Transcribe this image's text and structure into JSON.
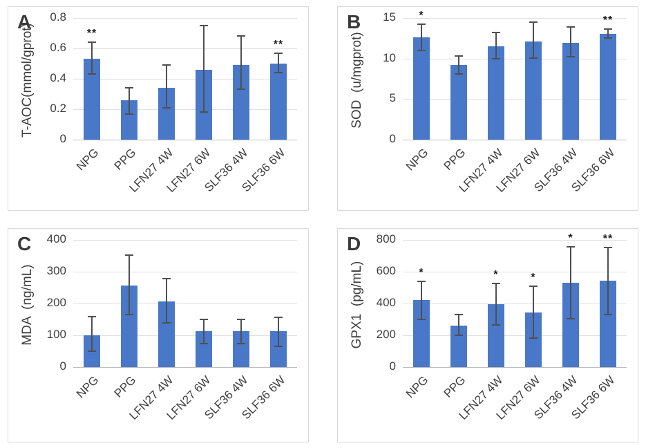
{
  "figure": {
    "background": "#ffffff",
    "panel_border_color": "#d9d9d9"
  },
  "colors": {
    "bar_fill": "#4a78c8",
    "error_bar": "#4f4f4f",
    "gridline": "#e0e0e0",
    "baseline": "#bdbdbd",
    "text": "#3d3d3d",
    "significance": "#1b1b1b"
  },
  "chart_data": [
    {
      "type": "bar",
      "panel_label": "A",
      "title": "",
      "ylabel": "T-AOC(mmol/gprot)",
      "xlabel": "",
      "ylim": [
        0,
        0.8
      ],
      "ytick_values": [
        0,
        0.2,
        0.4,
        0.6,
        0.8
      ],
      "yticks": [
        "0",
        "0.2",
        "0.4",
        "0.6",
        "0.8"
      ],
      "grid": true,
      "legend": "none",
      "categories": [
        "NPG",
        "PPG",
        "LFN27 4W",
        "LFN27 6W",
        "SLF36 4W",
        "SLF36 6W"
      ],
      "values": [
        0.53,
        0.26,
        0.34,
        0.46,
        0.49,
        0.5
      ],
      "error_low": [
        0.43,
        0.17,
        0.21,
        0.18,
        0.33,
        0.44
      ],
      "error_high": [
        0.64,
        0.34,
        0.49,
        0.75,
        0.68,
        0.57
      ],
      "significance": [
        "**",
        "",
        "",
        "",
        "",
        "**"
      ]
    },
    {
      "type": "bar",
      "panel_label": "B",
      "title": "",
      "ylabel": "SOD  (u/mgprot)",
      "xlabel": "",
      "ylim": [
        0,
        15
      ],
      "ytick_values": [
        0,
        5,
        10,
        15
      ],
      "yticks": [
        "0",
        "5",
        "10",
        "15"
      ],
      "grid": true,
      "legend": "none",
      "categories": [
        "NPG",
        "PPG",
        "LFN27 4W",
        "LFN27 6W",
        "SLF36 4W",
        "SLF36 6W"
      ],
      "values": [
        12.6,
        9.2,
        11.5,
        12.1,
        11.9,
        13.0
      ],
      "error_low": [
        11.0,
        8.1,
        10.0,
        10.1,
        10.2,
        12.5
      ],
      "error_high": [
        14.2,
        10.3,
        13.2,
        14.5,
        13.9,
        13.6
      ],
      "significance": [
        "*",
        "",
        "",
        "",
        "",
        "**"
      ]
    },
    {
      "type": "bar",
      "panel_label": "C",
      "title": "",
      "ylabel": "MDA  (ng/mL)",
      "xlabel": "",
      "ylim": [
        0,
        400
      ],
      "ytick_values": [
        0,
        100,
        200,
        300,
        400
      ],
      "yticks": [
        "0",
        "100",
        "200",
        "300",
        "400"
      ],
      "grid": true,
      "legend": "none",
      "categories": [
        "NPG",
        "PPG",
        "LFN27 4W",
        "LFN27 6W",
        "SLF36 4W",
        "SLF36 6W"
      ],
      "values": [
        101,
        257,
        206,
        113,
        114,
        112
      ],
      "error_low": [
        49,
        166,
        140,
        75,
        75,
        66
      ],
      "error_high": [
        158,
        353,
        278,
        151,
        151,
        156
      ],
      "significance": [
        "",
        "",
        "",
        "",
        "",
        ""
      ]
    },
    {
      "type": "bar",
      "panel_label": "D",
      "title": "",
      "ylabel": "GPX1  (pg/mL)",
      "xlabel": "",
      "ylim": [
        0,
        800
      ],
      "ytick_values": [
        0,
        200,
        400,
        600,
        800
      ],
      "yticks": [
        "0",
        "200",
        "400",
        "600",
        "800"
      ],
      "grid": true,
      "legend": "none",
      "categories": [
        "NPG",
        "PPG",
        "LFN27 4W",
        "LFN27 6W",
        "SLF36 4W",
        "SLF36 6W"
      ],
      "values": [
        420,
        260,
        396,
        344,
        529,
        545
      ],
      "error_low": [
        298,
        200,
        266,
        183,
        305,
        332
      ],
      "error_high": [
        541,
        330,
        525,
        509,
        758,
        754
      ],
      "significance": [
        "*",
        "",
        "*",
        "*",
        "*",
        "**"
      ]
    }
  ]
}
